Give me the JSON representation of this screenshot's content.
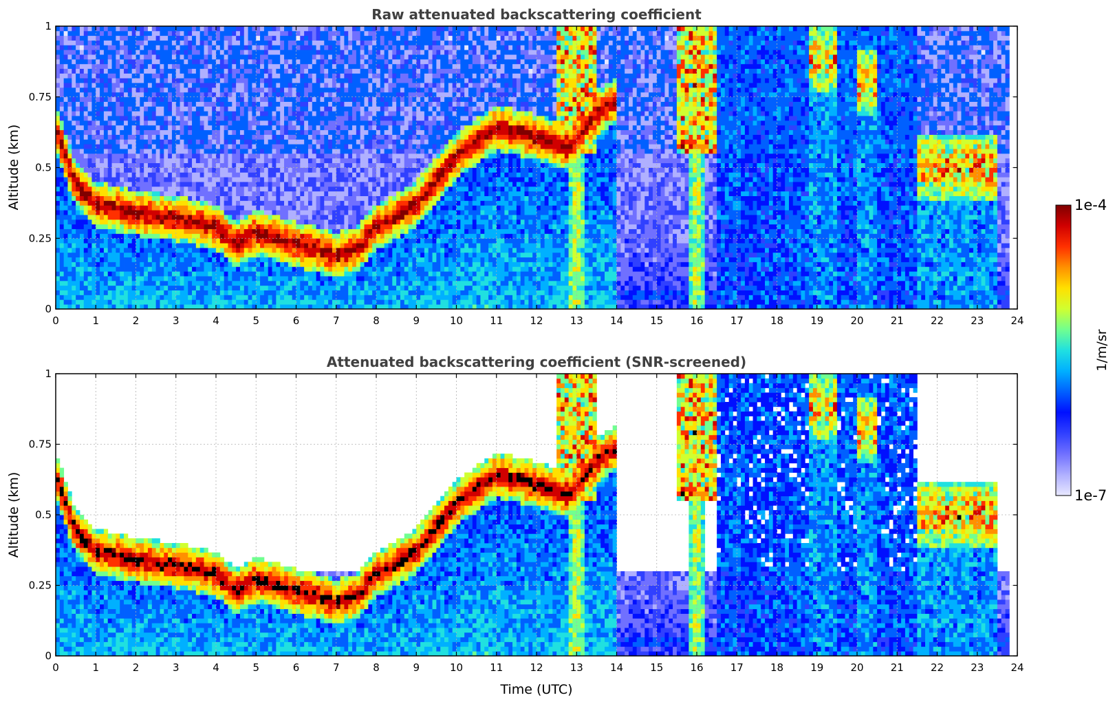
{
  "chart_data": [
    {
      "type": "heatmap",
      "title": "Raw attenuated backscattering coefficient",
      "xlabel": "",
      "ylabel": "Altitude (km)",
      "xlim": [
        0,
        24
      ],
      "ylim": [
        0,
        1
      ],
      "x_ticks": [
        "0",
        "1",
        "2",
        "3",
        "4",
        "5",
        "6",
        "7",
        "8",
        "9",
        "10",
        "11",
        "12",
        "13",
        "14",
        "15",
        "16",
        "17",
        "18",
        "19",
        "20",
        "21",
        "22",
        "23",
        "24"
      ],
      "y_ticks": [
        "0",
        "0.25",
        "0.5",
        "0.75",
        "1"
      ],
      "grid": true,
      "features": {
        "boundary_layer_top_km": [
          {
            "t": 0,
            "alt": 0.65
          },
          {
            "t": 0.5,
            "alt": 0.45
          },
          {
            "t": 1,
            "alt": 0.38
          },
          {
            "t": 2,
            "alt": 0.35
          },
          {
            "t": 3,
            "alt": 0.33
          },
          {
            "t": 4,
            "alt": 0.3
          },
          {
            "t": 4.5,
            "alt": 0.24
          },
          {
            "t": 5,
            "alt": 0.28
          },
          {
            "t": 6,
            "alt": 0.24
          },
          {
            "t": 7,
            "alt": 0.2
          },
          {
            "t": 7.5,
            "alt": 0.22
          },
          {
            "t": 8,
            "alt": 0.3
          },
          {
            "t": 9,
            "alt": 0.38
          },
          {
            "t": 10,
            "alt": 0.55
          },
          {
            "t": 11,
            "alt": 0.65
          },
          {
            "t": 12,
            "alt": 0.62
          },
          {
            "t": 12.8,
            "alt": 0.58
          },
          {
            "t": 13.5,
            "alt": 0.7
          },
          {
            "t": 14,
            "alt": 0.75
          }
        ],
        "precipitation_shafts_utc": [
          13.0,
          16.0
        ],
        "late_clouds": [
          {
            "t_start": 18.8,
            "t_end": 19.5,
            "alt": 0.88
          },
          {
            "t_start": 20.0,
            "t_end": 20.5,
            "alt": 0.8
          },
          {
            "t_start": 21.5,
            "t_end": 23.5,
            "alt": 0.5
          }
        ],
        "data_end_utc": 23.8
      }
    },
    {
      "type": "heatmap",
      "title": "Attenuated backscattering coefficient (SNR-screened)",
      "xlabel": "Time (UTC)",
      "ylabel": "Altitude (km)",
      "xlim": [
        0,
        24
      ],
      "ylim": [
        0,
        1
      ],
      "x_ticks": [
        "0",
        "1",
        "2",
        "3",
        "4",
        "5",
        "6",
        "7",
        "8",
        "9",
        "10",
        "11",
        "12",
        "13",
        "14",
        "15",
        "16",
        "17",
        "18",
        "19",
        "20",
        "21",
        "22",
        "23",
        "24"
      ],
      "y_ticks": [
        "0",
        "0.25",
        "0.5",
        "0.75",
        "1"
      ],
      "grid": true,
      "screened": true
    }
  ],
  "colorbar": {
    "label": "1/m/sr",
    "max_label": "1e-4",
    "min_label": "1e-7",
    "colors": [
      "#e8e8ff",
      "#b0b0ff",
      "#7070ff",
      "#3040ff",
      "#0010ff",
      "#0060ff",
      "#00b0ff",
      "#20e0e0",
      "#70ff90",
      "#d0ff30",
      "#ffe000",
      "#ff9000",
      "#ff3000",
      "#d00000",
      "#800000"
    ]
  }
}
